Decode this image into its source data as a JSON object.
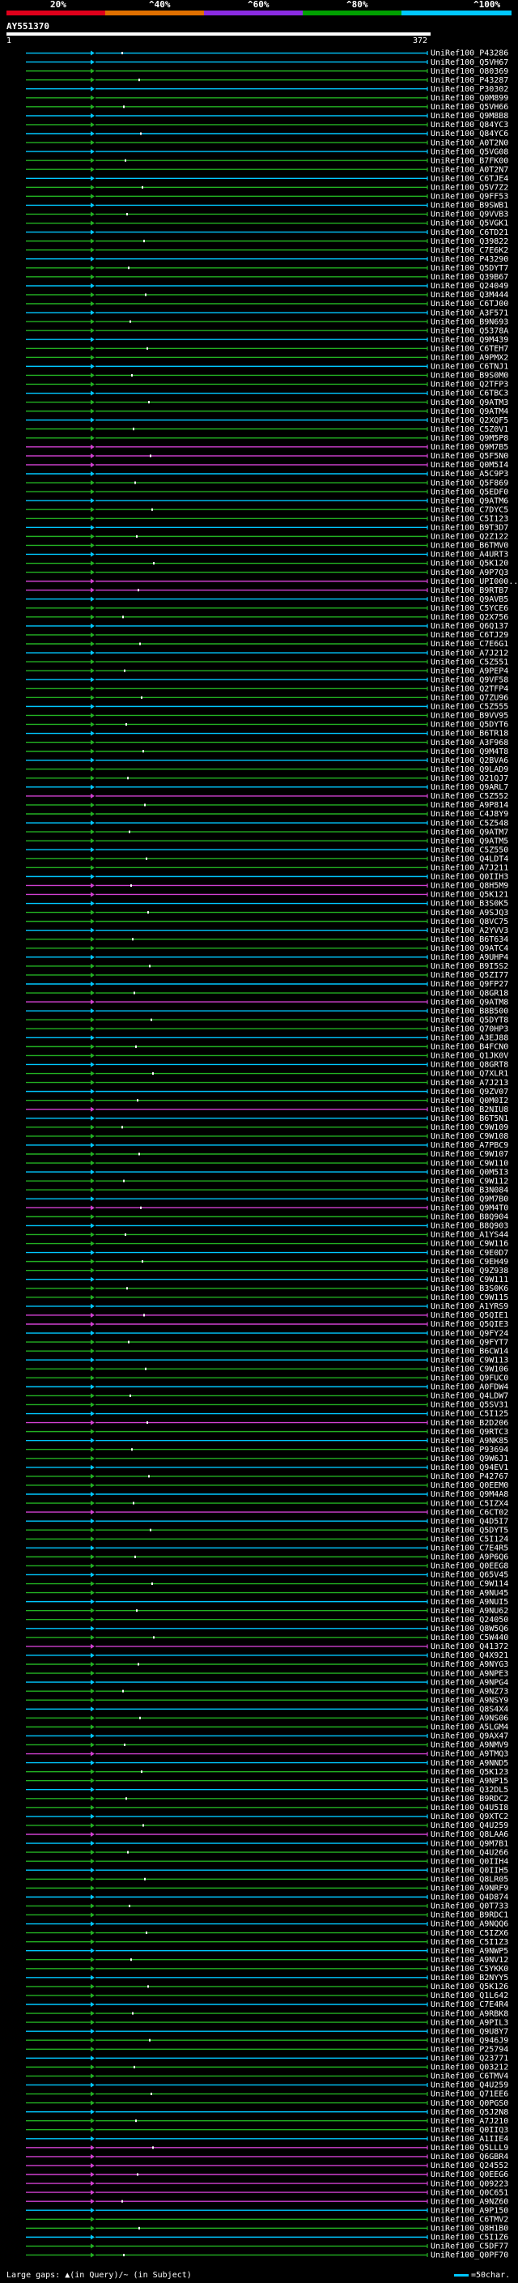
{
  "header": {
    "scale_labels": [
      "20%",
      "^40%",
      "^60%",
      "^80%",
      "^100%"
    ],
    "scale_colors": [
      "#e0001b",
      "#e07000",
      "#8a2be2",
      "#00a000",
      "#00c8ff"
    ],
    "query_id": "AY551370",
    "ruler_start": "1",
    "ruler_end": "372"
  },
  "footer": {
    "gap_text": "Large gaps: ▲(in Query)/~ (in Subject)",
    "scale_text": "=50char."
  },
  "colors": {
    "cyan": "#00c8ff",
    "green": "#22b022",
    "magenta": "#d040d0",
    "marker": "#ffffff"
  },
  "hits": [
    {
      "acc": "UniRef100_P43286",
      "c": "c"
    },
    {
      "acc": "UniRef100_Q5VH67",
      "c": "c"
    },
    {
      "acc": "UniRef100_O80369",
      "c": "g"
    },
    {
      "acc": "UniRef100_P43287",
      "c": "g"
    },
    {
      "acc": "UniRef100_P30302",
      "c": "c"
    },
    {
      "acc": "UniRef100_Q0M899",
      "c": "g"
    },
    {
      "acc": "UniRef100_Q5VH66",
      "c": "g"
    },
    {
      "acc": "UniRef100_Q9M8B8",
      "c": "c"
    },
    {
      "acc": "UniRef100_Q84YC3",
      "c": "g"
    },
    {
      "acc": "UniRef100_Q84YC6",
      "c": "c"
    },
    {
      "acc": "UniRef100_A0T2N0",
      "c": "g"
    },
    {
      "acc": "UniRef100_Q5VG08",
      "c": "c"
    },
    {
      "acc": "UniRef100_B7FK00",
      "c": "g"
    },
    {
      "acc": "UniRef100_A0T2N7",
      "c": "g"
    },
    {
      "acc": "UniRef100_C6TJE4",
      "c": "c"
    },
    {
      "acc": "UniRef100_Q5V7Z2",
      "c": "g"
    },
    {
      "acc": "UniRef100_Q9FF53",
      "c": "g"
    },
    {
      "acc": "UniRef100_B9SWB1",
      "c": "c"
    },
    {
      "acc": "UniRef100_Q9VVB3",
      "c": "g"
    },
    {
      "acc": "UniRef100_Q5VGK1",
      "c": "g"
    },
    {
      "acc": "UniRef100_C6TD21",
      "c": "c"
    },
    {
      "acc": "UniRef100_Q39822",
      "c": "g"
    },
    {
      "acc": "UniRef100_C7E6K2",
      "c": "g"
    },
    {
      "acc": "UniRef100_P43290",
      "c": "c"
    },
    {
      "acc": "UniRef100_Q5DYT7",
      "c": "g"
    },
    {
      "acc": "UniRef100_Q39B67",
      "c": "g"
    },
    {
      "acc": "UniRef100_Q24049",
      "c": "c"
    },
    {
      "acc": "UniRef100_Q3M444",
      "c": "g"
    },
    {
      "acc": "UniRef100_C6TJ00",
      "c": "g"
    },
    {
      "acc": "UniRef100_A3F571",
      "c": "c"
    },
    {
      "acc": "UniRef100_B9N693",
      "c": "g"
    },
    {
      "acc": "UniRef100_Q5378A",
      "c": "g"
    },
    {
      "acc": "UniRef100_Q9M439",
      "c": "c"
    },
    {
      "acc": "UniRef100_C6TEH7",
      "c": "g"
    },
    {
      "acc": "UniRef100_A9PMX2",
      "c": "g"
    },
    {
      "acc": "UniRef100_C6TNJ1",
      "c": "c"
    },
    {
      "acc": "UniRef100_B9S0M0",
      "c": "g"
    },
    {
      "acc": "UniRef100_Q2TFP3",
      "c": "g"
    },
    {
      "acc": "UniRef100_C6TBC3",
      "c": "c"
    },
    {
      "acc": "UniRef100_Q9ATM3",
      "c": "g"
    },
    {
      "acc": "UniRef100_Q9ATM4",
      "c": "g"
    },
    {
      "acc": "UniRef100_Q2XQF5",
      "c": "c"
    },
    {
      "acc": "UniRef100_C5Z0V1",
      "c": "g"
    },
    {
      "acc": "UniRef100_Q9M5P8",
      "c": "g"
    },
    {
      "acc": "UniRef100_Q9M7B5",
      "c": "m"
    },
    {
      "acc": "UniRef100_Q5F5N0",
      "c": "m"
    },
    {
      "acc": "UniRef100_Q0M5I4",
      "c": "m"
    },
    {
      "acc": "UniRef100_A5C9P3",
      "c": "c"
    },
    {
      "acc": "UniRef100_Q5F869",
      "c": "g"
    },
    {
      "acc": "UniRef100_Q5EDF0",
      "c": "g"
    },
    {
      "acc": "UniRef100_Q9ATM6",
      "c": "c"
    },
    {
      "acc": "UniRef100_C7DYC5",
      "c": "g"
    },
    {
      "acc": "UniRef100_C5I123",
      "c": "g"
    },
    {
      "acc": "UniRef100_B9T3D7",
      "c": "c"
    },
    {
      "acc": "UniRef100_Q2Z122",
      "c": "g"
    },
    {
      "acc": "UniRef100_B6TMV0",
      "c": "g"
    },
    {
      "acc": "UniRef100_A4URT3",
      "c": "c"
    },
    {
      "acc": "UniRef100_Q5K120",
      "c": "g"
    },
    {
      "acc": "UniRef100_A9P7Q3",
      "c": "g"
    },
    {
      "acc": "UniRef100_UPI000...",
      "c": "m"
    },
    {
      "acc": "UniRef100_B9RTB7",
      "c": "m"
    },
    {
      "acc": "UniRef100_Q9AVB5",
      "c": "c"
    },
    {
      "acc": "UniRef100_C5YCE6",
      "c": "g"
    },
    {
      "acc": "UniRef100_Q2X756",
      "c": "g"
    },
    {
      "acc": "UniRef100_Q6Q137",
      "c": "c"
    },
    {
      "acc": "UniRef100_C6TJ29",
      "c": "g"
    },
    {
      "acc": "UniRef100_C7E6G1",
      "c": "g"
    },
    {
      "acc": "UniRef100_A7J212",
      "c": "c"
    },
    {
      "acc": "UniRef100_C5Z551",
      "c": "g"
    },
    {
      "acc": "UniRef100_A9PEP4",
      "c": "g"
    },
    {
      "acc": "UniRef100_Q9VF58",
      "c": "c"
    },
    {
      "acc": "UniRef100_Q2TFP4",
      "c": "g"
    },
    {
      "acc": "UniRef100_Q7ZU96",
      "c": "g"
    },
    {
      "acc": "UniRef100_C5Z555",
      "c": "c"
    },
    {
      "acc": "UniRef100_B9VV95",
      "c": "g"
    },
    {
      "acc": "UniRef100_Q5DYT6",
      "c": "g"
    },
    {
      "acc": "UniRef100_B6TR18",
      "c": "c"
    },
    {
      "acc": "UniRef100_A3F968",
      "c": "g"
    },
    {
      "acc": "UniRef100_Q9M4T8",
      "c": "g"
    },
    {
      "acc": "UniRef100_Q2BVA6",
      "c": "c"
    },
    {
      "acc": "UniRef100_Q9LAD9",
      "c": "g"
    },
    {
      "acc": "UniRef100_Q21QJ7",
      "c": "g"
    },
    {
      "acc": "UniRef100_Q9ARL7",
      "c": "c"
    },
    {
      "acc": "UniRef100_C5Z552",
      "c": "m"
    },
    {
      "acc": "UniRef100_A9P814",
      "c": "g"
    },
    {
      "acc": "UniRef100_C4J8Y9",
      "c": "g"
    },
    {
      "acc": "UniRef100_C5Z548",
      "c": "c"
    },
    {
      "acc": "UniRef100_Q9ATM7",
      "c": "g"
    },
    {
      "acc": "UniRef100_Q9ATM5",
      "c": "g"
    },
    {
      "acc": "UniRef100_C5Z550",
      "c": "c"
    },
    {
      "acc": "UniRef100_Q4LDT4",
      "c": "g"
    },
    {
      "acc": "UniRef100_A7J211",
      "c": "g"
    },
    {
      "acc": "UniRef100_Q0IIH3",
      "c": "c"
    },
    {
      "acc": "UniRef100_Q8H5M9",
      "c": "m"
    },
    {
      "acc": "UniRef100_Q5K121",
      "c": "m"
    },
    {
      "acc": "UniRef100_B3S0K5",
      "c": "c"
    },
    {
      "acc": "UniRef100_A9SJQ3",
      "c": "g"
    },
    {
      "acc": "UniRef100_Q8VC75",
      "c": "g"
    },
    {
      "acc": "UniRef100_A2YVV3",
      "c": "c"
    },
    {
      "acc": "UniRef100_B6T634",
      "c": "g"
    },
    {
      "acc": "UniRef100_Q9ATC4",
      "c": "g"
    },
    {
      "acc": "UniRef100_A9UHP4",
      "c": "c"
    },
    {
      "acc": "UniRef100_B9I5S2",
      "c": "g"
    },
    {
      "acc": "UniRef100_Q5ZI77",
      "c": "g"
    },
    {
      "acc": "UniRef100_Q9FP27",
      "c": "c"
    },
    {
      "acc": "UniRef100_Q8GR18",
      "c": "g"
    },
    {
      "acc": "UniRef100_Q9ATM8",
      "c": "m"
    },
    {
      "acc": "UniRef100_B8B500",
      "c": "c"
    },
    {
      "acc": "UniRef100_Q5DYT8",
      "c": "g"
    },
    {
      "acc": "UniRef100_Q70HP3",
      "c": "g"
    },
    {
      "acc": "UniRef100_A3EJ88",
      "c": "c"
    },
    {
      "acc": "UniRef100_B4FCN0",
      "c": "g"
    },
    {
      "acc": "UniRef100_Q1JK0V",
      "c": "g"
    },
    {
      "acc": "UniRef100_Q8GRT8",
      "c": "c"
    },
    {
      "acc": "UniRef100_Q7XLR1",
      "c": "g"
    },
    {
      "acc": "UniRef100_A7J213",
      "c": "g"
    },
    {
      "acc": "UniRef100_Q9ZV07",
      "c": "c"
    },
    {
      "acc": "UniRef100_Q0M0I2",
      "c": "g"
    },
    {
      "acc": "UniRef100_B2NIU8",
      "c": "m"
    },
    {
      "acc": "UniRef100_B6T5N1",
      "c": "c"
    },
    {
      "acc": "UniRef100_C9W109",
      "c": "g"
    },
    {
      "acc": "UniRef100_C9W108",
      "c": "g"
    },
    {
      "acc": "UniRef100_A7PBC9",
      "c": "c"
    },
    {
      "acc": "UniRef100_C9W107",
      "c": "g"
    },
    {
      "acc": "UniRef100_C9W110",
      "c": "g"
    },
    {
      "acc": "UniRef100_Q0M5I3",
      "c": "c"
    },
    {
      "acc": "UniRef100_C9W112",
      "c": "g"
    },
    {
      "acc": "UniRef100_B3N084",
      "c": "g"
    },
    {
      "acc": "UniRef100_Q9M7B0",
      "c": "c"
    },
    {
      "acc": "UniRef100_Q9M4T0",
      "c": "m"
    },
    {
      "acc": "UniRef100_B8Q904",
      "c": "g"
    },
    {
      "acc": "UniRef100_B8Q903",
      "c": "c"
    },
    {
      "acc": "UniRef100_A1YS44",
      "c": "g"
    },
    {
      "acc": "UniRef100_C9W116",
      "c": "g"
    },
    {
      "acc": "UniRef100_C9E0D7",
      "c": "c"
    },
    {
      "acc": "UniRef100_C9EH49",
      "c": "g"
    },
    {
      "acc": "UniRef100_Q9Z938",
      "c": "g"
    },
    {
      "acc": "UniRef100_C9W111",
      "c": "c"
    },
    {
      "acc": "UniRef100_B3S0K6",
      "c": "g"
    },
    {
      "acc": "UniRef100_C9W115",
      "c": "g"
    },
    {
      "acc": "UniRef100_A1YRS9",
      "c": "c"
    },
    {
      "acc": "UniRef100_Q5QIE1",
      "c": "m"
    },
    {
      "acc": "UniRef100_Q5QIE3",
      "c": "m"
    },
    {
      "acc": "UniRef100_Q9FY24",
      "c": "c"
    },
    {
      "acc": "UniRef100_Q9FYT7",
      "c": "g"
    },
    {
      "acc": "UniRef100_B6CW14",
      "c": "g"
    },
    {
      "acc": "UniRef100_C9W113",
      "c": "c"
    },
    {
      "acc": "UniRef100_C9W106",
      "c": "g"
    },
    {
      "acc": "UniRef100_Q9FUC0",
      "c": "g"
    },
    {
      "acc": "UniRef100_A0FDW4",
      "c": "c"
    },
    {
      "acc": "UniRef100_Q4LDW7",
      "c": "g"
    },
    {
      "acc": "UniRef100_Q5SV31",
      "c": "g"
    },
    {
      "acc": "UniRef100_C5I125",
      "c": "c"
    },
    {
      "acc": "UniRef100_B2D206",
      "c": "m"
    },
    {
      "acc": "UniRef100_Q9RTC3",
      "c": "g"
    },
    {
      "acc": "UniRef100_A9NK85",
      "c": "c"
    },
    {
      "acc": "UniRef100_P93694",
      "c": "g"
    },
    {
      "acc": "UniRef100_Q9W6J1",
      "c": "g"
    },
    {
      "acc": "UniRef100_Q94EV1",
      "c": "c"
    },
    {
      "acc": "UniRef100_P42767",
      "c": "g"
    },
    {
      "acc": "UniRef100_Q0EEM0",
      "c": "g"
    },
    {
      "acc": "UniRef100_Q9M4A8",
      "c": "c"
    },
    {
      "acc": "UniRef100_C5IZX4",
      "c": "g"
    },
    {
      "acc": "UniRef100_C6CT02",
      "c": "m"
    },
    {
      "acc": "UniRef100_Q4D5I7",
      "c": "c"
    },
    {
      "acc": "UniRef100_Q5DYT5",
      "c": "g"
    },
    {
      "acc": "UniRef100_C5I124",
      "c": "g"
    },
    {
      "acc": "UniRef100_C7E4R5",
      "c": "c"
    },
    {
      "acc": "UniRef100_A9P6Q6",
      "c": "g"
    },
    {
      "acc": "UniRef100_Q0EEG8",
      "c": "g"
    },
    {
      "acc": "UniRef100_Q65V45",
      "c": "c"
    },
    {
      "acc": "UniRef100_C9W114",
      "c": "g"
    },
    {
      "acc": "UniRef100_A9NU45",
      "c": "g"
    },
    {
      "acc": "UniRef100_A9NUI5",
      "c": "c"
    },
    {
      "acc": "UniRef100_A9NU62",
      "c": "g"
    },
    {
      "acc": "UniRef100_Q24050",
      "c": "g"
    },
    {
      "acc": "UniRef100_Q8W5Q6",
      "c": "c"
    },
    {
      "acc": "UniRef100_C5W440",
      "c": "g"
    },
    {
      "acc": "UniRef100_Q41372",
      "c": "m"
    },
    {
      "acc": "UniRef100_Q4X921",
      "c": "c"
    },
    {
      "acc": "UniRef100_A9NYG3",
      "c": "g"
    },
    {
      "acc": "UniRef100_A9NPE3",
      "c": "g"
    },
    {
      "acc": "UniRef100_A9NPG4",
      "c": "c"
    },
    {
      "acc": "UniRef100_A9NZ73",
      "c": "g"
    },
    {
      "acc": "UniRef100_A9NSY9",
      "c": "g"
    },
    {
      "acc": "UniRef100_Q8S4X4",
      "c": "c"
    },
    {
      "acc": "UniRef100_A9NS06",
      "c": "g"
    },
    {
      "acc": "UniRef100_A5LGM4",
      "c": "g"
    },
    {
      "acc": "UniRef100_Q9AX47",
      "c": "c"
    },
    {
      "acc": "UniRef100_A9NMV9",
      "c": "g"
    },
    {
      "acc": "UniRef100_A9TMQ3",
      "c": "m"
    },
    {
      "acc": "UniRef100_A9NND5",
      "c": "c"
    },
    {
      "acc": "UniRef100_Q5K123",
      "c": "g"
    },
    {
      "acc": "UniRef100_A9NP15",
      "c": "g"
    },
    {
      "acc": "UniRef100_Q32DL5",
      "c": "c"
    },
    {
      "acc": "UniRef100_B9RDC2",
      "c": "g"
    },
    {
      "acc": "UniRef100_Q4U5I8",
      "c": "g"
    },
    {
      "acc": "UniRef100_Q9XTC2",
      "c": "c"
    },
    {
      "acc": "UniRef100_Q4U259",
      "c": "g"
    },
    {
      "acc": "UniRef100_Q8LAA6",
      "c": "m"
    },
    {
      "acc": "UniRef100_Q9M7B1",
      "c": "c"
    },
    {
      "acc": "UniRef100_Q4U266",
      "c": "g"
    },
    {
      "acc": "UniRef100_Q0IIH4",
      "c": "g"
    },
    {
      "acc": "UniRef100_Q0IIH5",
      "c": "c"
    },
    {
      "acc": "UniRef100_Q8LR05",
      "c": "g"
    },
    {
      "acc": "UniRef100_A9NRF9",
      "c": "g"
    },
    {
      "acc": "UniRef100_Q4D874",
      "c": "c"
    },
    {
      "acc": "UniRef100_Q0T733",
      "c": "g"
    },
    {
      "acc": "UniRef100_B9RDC1",
      "c": "g"
    },
    {
      "acc": "UniRef100_A9NQQ6",
      "c": "c"
    },
    {
      "acc": "UniRef100_C5IZX6",
      "c": "g"
    },
    {
      "acc": "UniRef100_C5I1Z3",
      "c": "g"
    },
    {
      "acc": "UniRef100_A9NWP5",
      "c": "c"
    },
    {
      "acc": "UniRef100_A9NV12",
      "c": "g"
    },
    {
      "acc": "UniRef100_C5YKK0",
      "c": "g"
    },
    {
      "acc": "UniRef100_B2NYY5",
      "c": "c"
    },
    {
      "acc": "UniRef100_Q5K126",
      "c": "g"
    },
    {
      "acc": "UniRef100_Q1L642",
      "c": "g"
    },
    {
      "acc": "UniRef100_C7E4R4",
      "c": "c"
    },
    {
      "acc": "UniRef100_A9RBK8",
      "c": "g"
    },
    {
      "acc": "UniRef100_A9PIL3",
      "c": "g"
    },
    {
      "acc": "UniRef100_Q9U8Y7",
      "c": "c"
    },
    {
      "acc": "UniRef100_Q946J9",
      "c": "g"
    },
    {
      "acc": "UniRef100_P25794",
      "c": "g"
    },
    {
      "acc": "UniRef100_Q23771",
      "c": "c"
    },
    {
      "acc": "UniRef100_Q03212",
      "c": "g"
    },
    {
      "acc": "UniRef100_C6TMV4",
      "c": "g"
    },
    {
      "acc": "UniRef100_Q4U259",
      "c": "c"
    },
    {
      "acc": "UniRef100_Q71EE6",
      "c": "g"
    },
    {
      "acc": "UniRef100_Q0PGS0",
      "c": "g"
    },
    {
      "acc": "UniRef100_Q5J2N8",
      "c": "c"
    },
    {
      "acc": "UniRef100_A7J210",
      "c": "g"
    },
    {
      "acc": "UniRef100_Q0IIQ3",
      "c": "g"
    },
    {
      "acc": "UniRef100_A1IIE4",
      "c": "c"
    },
    {
      "acc": "UniRef100_Q5LLL9",
      "c": "m"
    },
    {
      "acc": "UniRef100_Q6GBR4",
      "c": "m"
    },
    {
      "acc": "UniRef100_Q24552",
      "c": "m"
    },
    {
      "acc": "UniRef100_Q0EEG6",
      "c": "m"
    },
    {
      "acc": "UniRef100_Q09223",
      "c": "m"
    },
    {
      "acc": "UniRef100_Q0C651",
      "c": "m"
    },
    {
      "acc": "UniRef100_A9NZ60",
      "c": "m"
    },
    {
      "acc": "UniRef100_A9P150",
      "c": "c"
    },
    {
      "acc": "UniRef100_C6TMV2",
      "c": "g"
    },
    {
      "acc": "UniRef100_Q8H1B0",
      "c": "g"
    },
    {
      "acc": "UniRef100_C5I1Z6",
      "c": "c"
    },
    {
      "acc": "UniRef100_C5DF77",
      "c": "g"
    },
    {
      "acc": "UniRef100_Q0PF70",
      "c": "g"
    }
  ]
}
